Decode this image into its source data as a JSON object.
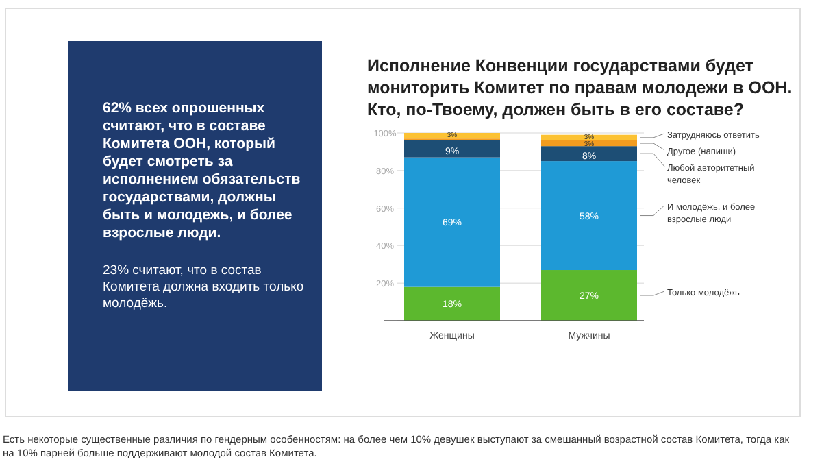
{
  "chart_data": [
    {
      "type": "other",
      "color": "#1f3b6e",
      "annotations": [
        "62% всех опрошенных считают, что в составе Комитета ООН, который будет смотреть за исполнением обязательств государствами, должны быть и молодежь, и более взрослые люди.",
        "23% считают, что в состав Комитета должна входить только молодёжь."
      ]
    },
    {
      "type": "bar",
      "stacked": true,
      "title": "Исполнение Конвенции государствами будет мониторить Комитет по правам молодежи в ООН. Кто, по-Твоему, должен быть в его составе?",
      "categories": [
        "Женщины",
        "Мужчины"
      ],
      "ylim": [
        0,
        100
      ],
      "yticks": [
        {
          "value": 0,
          "label": null
        },
        {
          "value": 20,
          "label": "20%"
        },
        {
          "value": 40,
          "label": "40%"
        },
        {
          "value": 60,
          "label": "60%"
        },
        {
          "value": 80,
          "label": "80%"
        },
        {
          "value": 100,
          "label": "100%"
        }
      ],
      "grid": "y",
      "legend": "right",
      "series": [
        {
          "name": "Только молодёжь",
          "color": "#5cb82e",
          "values": [
            18,
            27
          ],
          "value_labels": [
            "18%",
            "27%"
          ]
        },
        {
          "name": "И молодёжь, и более взрослые люди",
          "color": "#1f9ad6",
          "values": [
            69,
            58
          ],
          "value_labels": [
            "69%",
            "58%"
          ]
        },
        {
          "name": "Любой авторитетный человек",
          "color": "#1d4e75",
          "values": [
            9,
            8
          ],
          "value_labels": [
            "9%",
            "8%"
          ]
        },
        {
          "name": "Другое (напиши)",
          "color": "#f39c1f",
          "values": [
            1,
            3
          ],
          "value_labels": [
            null,
            "3%"
          ]
        },
        {
          "name": "Затрудняюсь ответить",
          "color": "#fcc233",
          "values": [
            3,
            3
          ],
          "value_labels": [
            "3%",
            "3%"
          ]
        }
      ],
      "annotations": [
        "Есть некоторые существенные различия по гендерным особенностям: на более чем 10% девушек выступают за смешанный возрастной состав Комитета, тогда как на 10% парней больше поддерживают молодой состав Комитета."
      ]
    }
  ]
}
